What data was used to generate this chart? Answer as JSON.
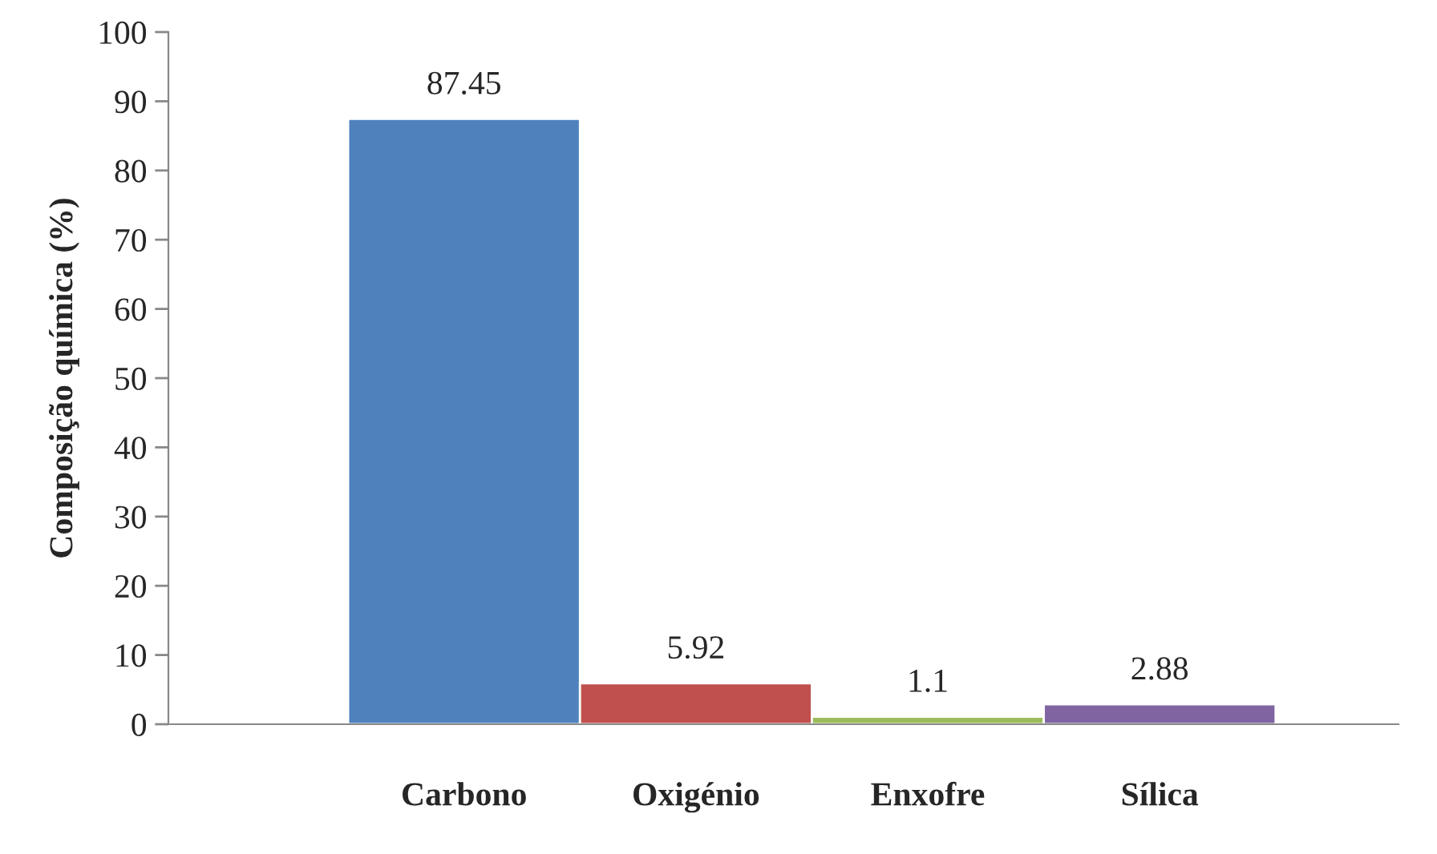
{
  "chart_data": {
    "type": "bar",
    "ylabel": "Composição química (%)",
    "categories": [
      "Carbono",
      "Oxigénio",
      "Enxofre",
      "Sílica"
    ],
    "values": [
      87.45,
      5.92,
      1.1,
      2.88
    ],
    "colors": [
      "#4f81bd",
      "#c0504d",
      "#9bbb59",
      "#8064a2"
    ],
    "ylim": [
      0,
      100
    ],
    "yticks": [
      0,
      10,
      20,
      30,
      40,
      50,
      60,
      70,
      80,
      90,
      100
    ],
    "data_labels": true,
    "grid": false,
    "legend": false
  }
}
